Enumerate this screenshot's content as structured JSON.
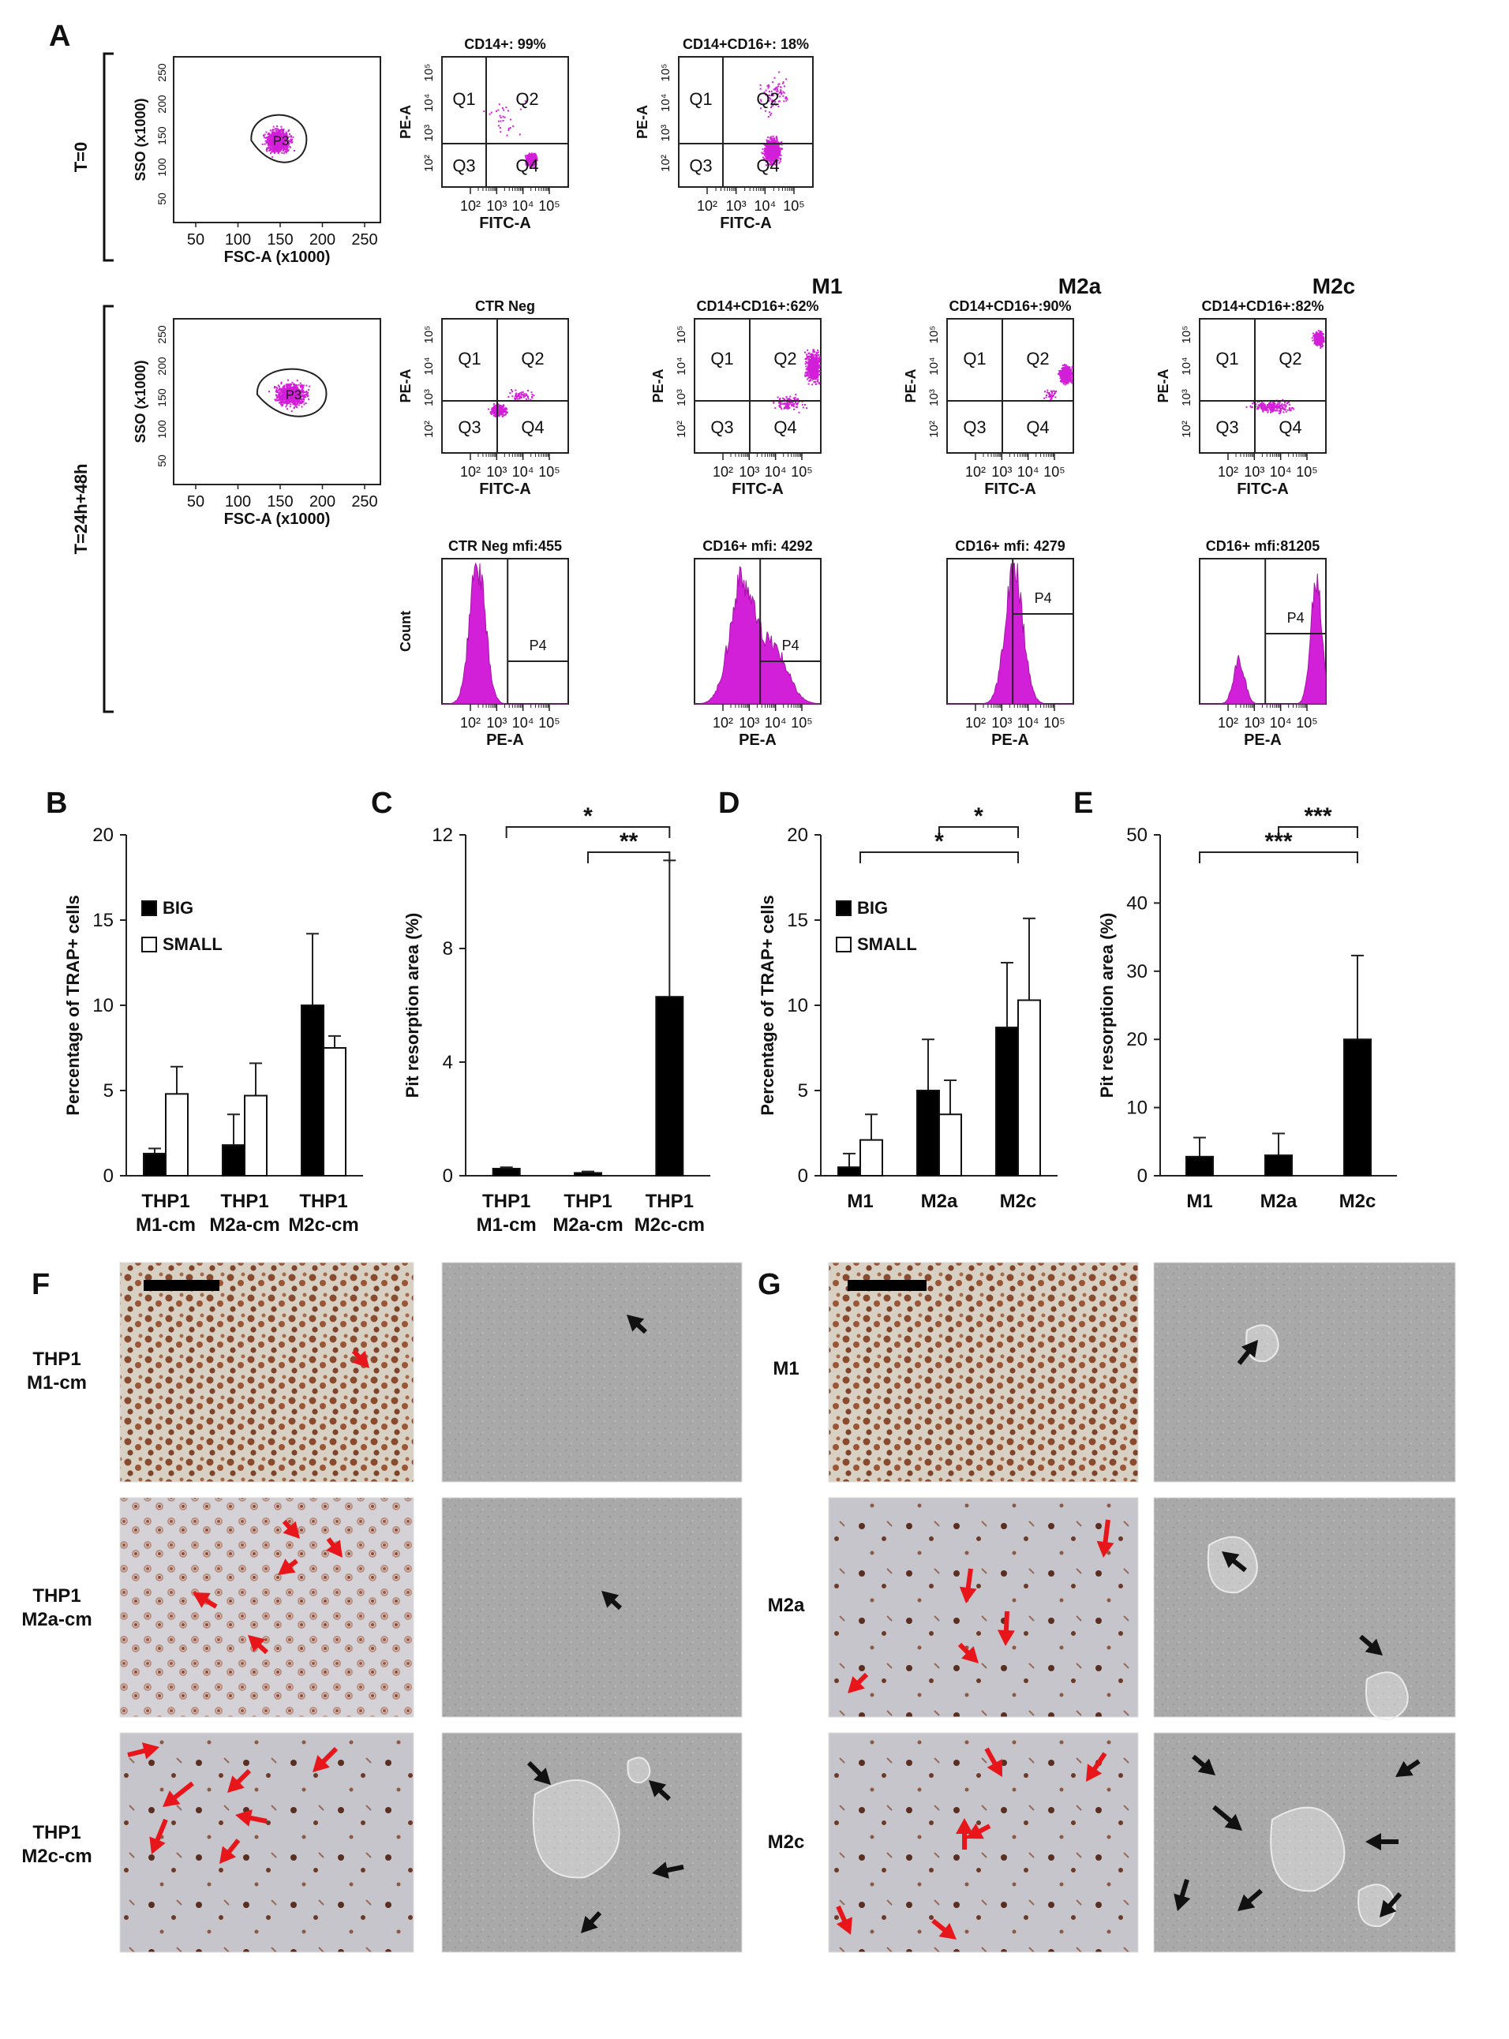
{
  "panel_letters": {
    "A": "A",
    "B": "B",
    "C": "C",
    "D": "D",
    "E": "E",
    "F": "F",
    "G": "G"
  },
  "row_labels": {
    "t0": "T=0",
    "t24": "T=24h+48h"
  },
  "flow": {
    "scatter_x_label": "FSC-A (x1000)",
    "scatter_y_label": "SSO (x1000)",
    "scatter_x_ticks": [
      "50",
      "100",
      "150",
      "200",
      "250"
    ],
    "scatter_y_ticks": [
      "50",
      "100",
      "150",
      "200",
      "250"
    ],
    "gate_p3": "P3",
    "quad_x_label": "FITC-A",
    "quad_y_label": "PE-A",
    "hist_x_label": "PE-A",
    "hist_y_label": "Count",
    "log_ticks": [
      "10²",
      "10³",
      "10⁴",
      "10⁵"
    ],
    "quadrants": [
      "Q1",
      "Q2",
      "Q3",
      "Q4"
    ],
    "gate_p4": "P4",
    "t0_titles": [
      "CD14+: 99%",
      "CD14+CD16+: 18%"
    ],
    "group_headers": [
      "M1",
      "M2a",
      "M2c"
    ],
    "t24_quad_titles": [
      "CTR Neg",
      "CD14+CD16+:62%",
      "CD14+CD16+:90%",
      "CD14+CD16+:82%"
    ],
    "t24_hist_titles": [
      "CTR Neg mfi:455",
      "CD16+ mfi: 4292",
      "CD16+ mfi: 4279",
      "CD16+ mfi:81205"
    ]
  },
  "chart_data": [
    {
      "id": "B",
      "type": "bar",
      "ylabel": "Percentage of TRAP+ cells",
      "ylim": [
        0,
        20
      ],
      "yticks": [
        "0",
        "5",
        "10",
        "15",
        "20"
      ],
      "categories": [
        [
          "THP1",
          "M1-cm"
        ],
        [
          "THP1",
          "M2a-cm"
        ],
        [
          "THP1",
          "M2c-cm"
        ]
      ],
      "series": [
        {
          "name": "BIG",
          "color": "#000000",
          "values": [
            1.3,
            1.8,
            10.0
          ],
          "errors": [
            0.3,
            1.8,
            4.2
          ]
        },
        {
          "name": "SMALL",
          "color": "#ffffff",
          "values": [
            4.8,
            4.7,
            7.5
          ],
          "errors": [
            1.6,
            1.9,
            0.7
          ]
        }
      ],
      "legend": "upper-left",
      "significance": []
    },
    {
      "id": "C",
      "type": "bar",
      "ylabel": "Pit resorption area (%)",
      "ylim": [
        0,
        12
      ],
      "yticks": [
        "0",
        "4",
        "8",
        "12"
      ],
      "categories": [
        [
          "THP1",
          "M1-cm"
        ],
        [
          "THP1",
          "M2a-cm"
        ],
        [
          "THP1",
          "M2c-cm"
        ]
      ],
      "series": [
        {
          "name": "area",
          "color": "#000000",
          "values": [
            0.25,
            0.1,
            6.3
          ],
          "errors": [
            0.05,
            0.05,
            4.8
          ]
        }
      ],
      "significance": [
        {
          "from": 0,
          "to": 2,
          "label": "*"
        },
        {
          "from": 1,
          "to": 2,
          "label": "**"
        }
      ]
    },
    {
      "id": "D",
      "type": "bar",
      "ylabel": "Percentage of TRAP+ cells",
      "ylim": [
        0,
        20
      ],
      "yticks": [
        "0",
        "5",
        "10",
        "15",
        "20"
      ],
      "categories": [
        [
          "M1"
        ],
        [
          "M2a"
        ],
        [
          "M2c"
        ]
      ],
      "series": [
        {
          "name": "BIG",
          "color": "#000000",
          "values": [
            0.5,
            5.0,
            8.7
          ],
          "errors": [
            0.8,
            3.0,
            3.8
          ]
        },
        {
          "name": "SMALL",
          "color": "#ffffff",
          "values": [
            2.1,
            3.6,
            10.3
          ],
          "errors": [
            1.5,
            2.0,
            4.8
          ]
        }
      ],
      "legend": "upper-left",
      "significance": [
        {
          "from": 1,
          "to": 2,
          "label": "*"
        },
        {
          "from": 0,
          "to": 2,
          "label": "*"
        }
      ]
    },
    {
      "id": "E",
      "type": "bar",
      "ylabel": "Pit resorption area (%)",
      "ylim": [
        0,
        50
      ],
      "yticks": [
        "0",
        "10",
        "20",
        "30",
        "40",
        "50"
      ],
      "categories": [
        [
          "M1"
        ],
        [
          "M2a"
        ],
        [
          "M2c"
        ]
      ],
      "series": [
        {
          "name": "area",
          "color": "#000000",
          "values": [
            2.8,
            3.0,
            20.0
          ],
          "errors": [
            2.8,
            3.2,
            12.3
          ]
        }
      ],
      "significance": [
        {
          "from": 1,
          "to": 2,
          "label": "***"
        },
        {
          "from": 0,
          "to": 2,
          "label": "***"
        }
      ]
    }
  ],
  "micro": {
    "F_rows": [
      [
        "THP1",
        "M1-cm"
      ],
      [
        "THP1",
        "M2a-cm"
      ],
      [
        "THP1",
        "M2c-cm"
      ]
    ],
    "G_rows": [
      [
        "M1"
      ],
      [
        "M2a"
      ],
      [
        "M2c"
      ]
    ]
  }
}
